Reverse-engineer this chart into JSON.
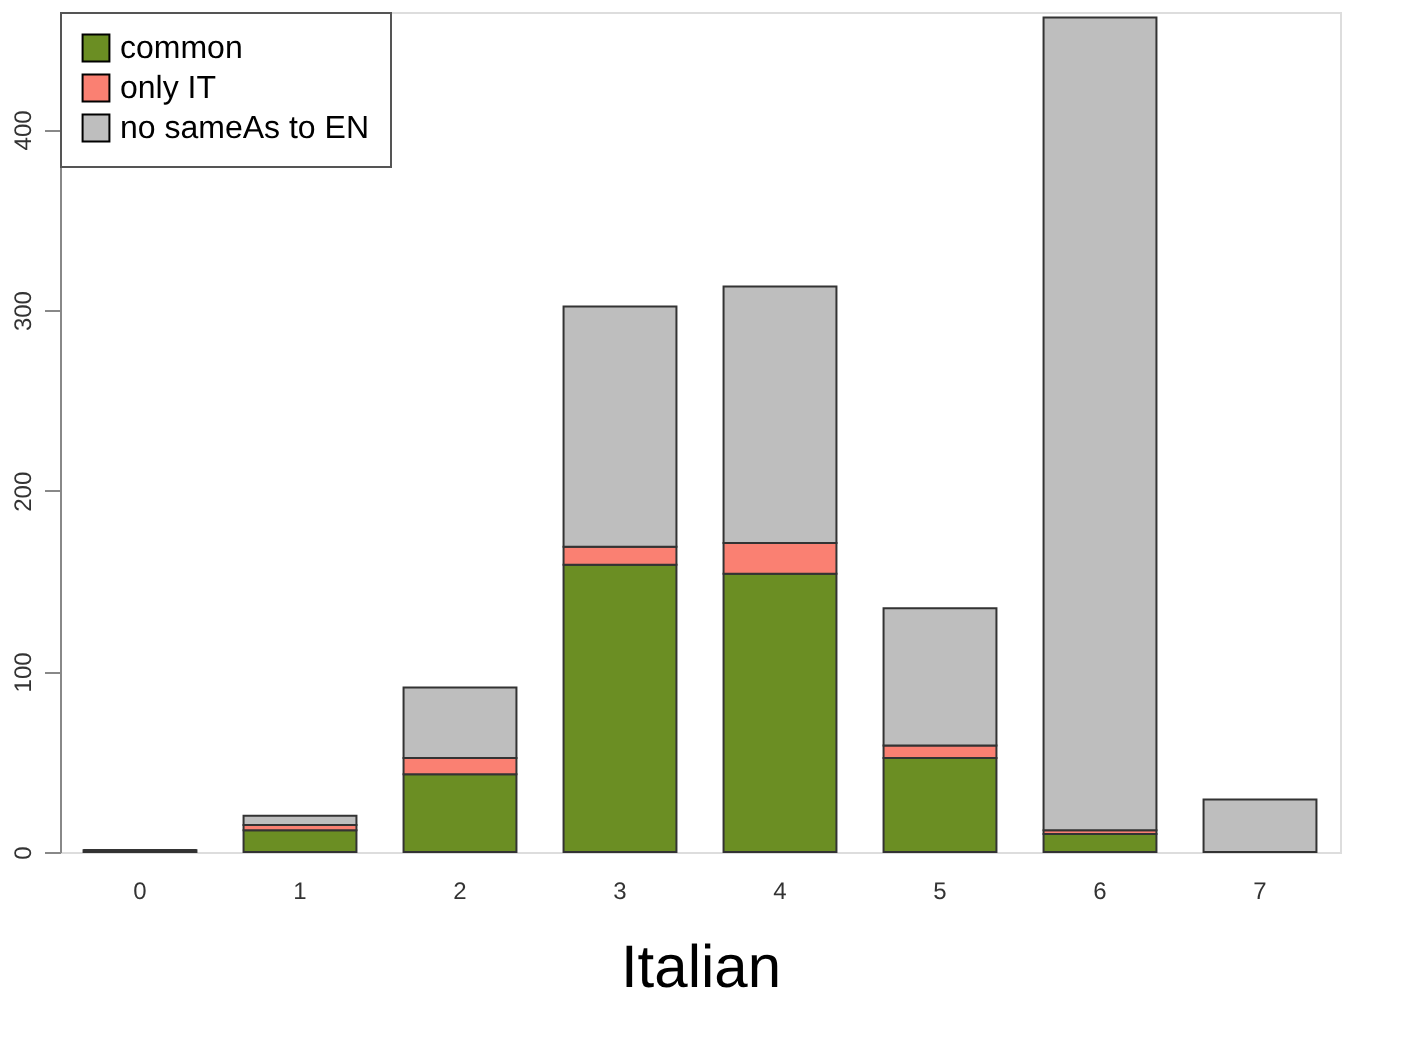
{
  "chart_data": {
    "type": "bar",
    "xlabel": "Italian",
    "categories": [
      "0",
      "1",
      "2",
      "3",
      "4",
      "5",
      "6",
      "7"
    ],
    "stacked": true,
    "series": [
      {
        "name": "common",
        "color": "#6b8e23",
        "values": [
          1,
          12,
          43,
          159,
          154,
          52,
          10,
          0
        ]
      },
      {
        "name": "only IT",
        "color": "#fa8072",
        "values": [
          0,
          3,
          9,
          10,
          17,
          7,
          2,
          0
        ]
      },
      {
        "name": "no sameAs to EN",
        "color": "#bebebe",
        "values": [
          0,
          5,
          39,
          133,
          142,
          76,
          450,
          29
        ]
      }
    ],
    "ylim": [
      0,
      465
    ],
    "yticks": [
      0,
      100,
      200,
      300,
      400
    ],
    "grid": false,
    "legend": "top left"
  }
}
